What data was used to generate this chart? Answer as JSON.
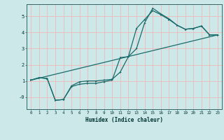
{
  "xlabel": "Humidex (Indice chaleur)",
  "bg_color": "#cce8e8",
  "grid_color": "#f0b8b8",
  "line_color": "#1a6b6b",
  "xlim": [
    -0.5,
    23.5
  ],
  "ylim": [
    -0.75,
    5.75
  ],
  "xticks": [
    0,
    1,
    2,
    3,
    4,
    5,
    6,
    7,
    8,
    9,
    10,
    11,
    12,
    13,
    14,
    15,
    16,
    17,
    18,
    19,
    20,
    21,
    22,
    23
  ],
  "yticks": [
    0,
    1,
    2,
    3,
    4,
    5
  ],
  "ytick_labels": [
    "-0",
    "1",
    "2",
    "3",
    "4",
    "5"
  ],
  "line1_x": [
    0,
    1,
    2,
    3,
    4,
    5,
    6,
    7,
    8,
    9,
    10,
    11,
    12,
    13,
    14,
    15,
    16,
    17,
    18,
    19,
    20,
    21,
    22,
    23
  ],
  "line1_y": [
    1.05,
    1.2,
    1.15,
    -0.2,
    -0.15,
    0.7,
    0.95,
    1.0,
    1.0,
    1.05,
    1.1,
    1.55,
    2.5,
    4.25,
    4.8,
    5.35,
    5.1,
    4.8,
    4.45,
    4.2,
    4.25,
    4.4,
    3.85,
    3.85
  ],
  "line2_x": [
    0,
    1,
    2,
    3,
    4,
    5,
    6,
    7,
    8,
    9,
    10,
    11,
    12,
    13,
    14,
    15,
    16,
    17,
    18,
    19,
    20,
    21,
    22,
    23
  ],
  "line2_y": [
    1.05,
    1.2,
    1.15,
    -0.2,
    -0.15,
    0.65,
    0.8,
    0.85,
    0.85,
    0.95,
    1.05,
    2.45,
    2.5,
    3.0,
    4.6,
    5.5,
    5.15,
    4.85,
    4.45,
    4.2,
    4.25,
    4.4,
    3.85,
    3.85
  ],
  "line3_x": [
    0,
    23
  ],
  "line3_y": [
    1.05,
    3.85
  ]
}
